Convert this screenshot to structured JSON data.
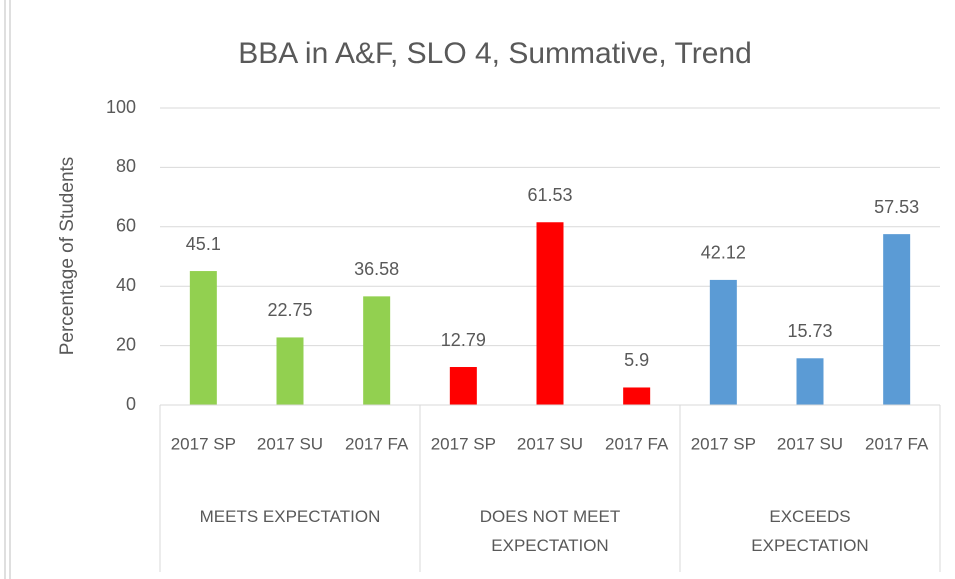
{
  "chart_data": {
    "type": "bar",
    "title": "BBA in A&F, SLO 4, Summative, Trend",
    "ylabel": "Percentage of Students",
    "ylim": [
      0,
      100
    ],
    "yticks": [
      0,
      20,
      40,
      60,
      80,
      100
    ],
    "grid": true,
    "groups": [
      {
        "name": "MEETS EXPECTATION",
        "color": "#92d050",
        "categories": [
          "2017 SP",
          "2017 SU",
          "2017 FA"
        ],
        "values": [
          45.1,
          22.75,
          36.58
        ]
      },
      {
        "name": "DOES NOT MEET EXPECTATION",
        "color": "#ff0000",
        "categories": [
          "2017 SP",
          "2017 SU",
          "2017 FA"
        ],
        "values": [
          12.79,
          61.53,
          5.9
        ]
      },
      {
        "name": "EXCEEDS EXPECTATION",
        "color": "#5b9bd5",
        "categories": [
          "2017 SP",
          "2017 SU",
          "2017 FA"
        ],
        "values": [
          42.12,
          15.73,
          57.53
        ]
      }
    ]
  }
}
